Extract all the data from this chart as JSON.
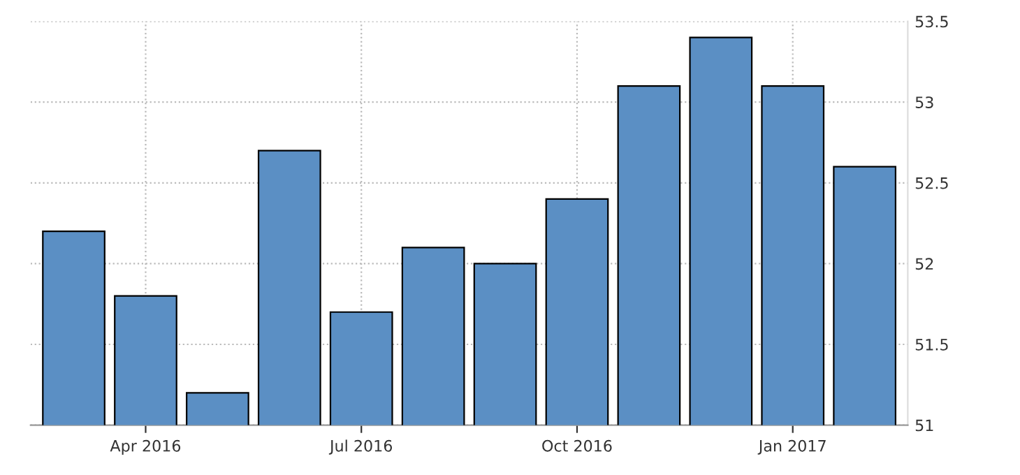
{
  "chart_data": {
    "type": "bar",
    "categories": [
      null,
      "Apr 2016",
      null,
      null,
      "Jul 2016",
      null,
      null,
      "Oct 2016",
      null,
      null,
      "Jan 2017",
      null
    ],
    "values": [
      52.2,
      51.8,
      51.2,
      52.7,
      51.7,
      52.1,
      52.0,
      52.4,
      53.1,
      53.4,
      53.1,
      52.6
    ],
    "color": "#5b8fc4",
    "ylim": [
      51,
      53.5
    ],
    "yticks": [
      51,
      51.5,
      52,
      52.5,
      53,
      53.5
    ],
    "grid": true
  }
}
